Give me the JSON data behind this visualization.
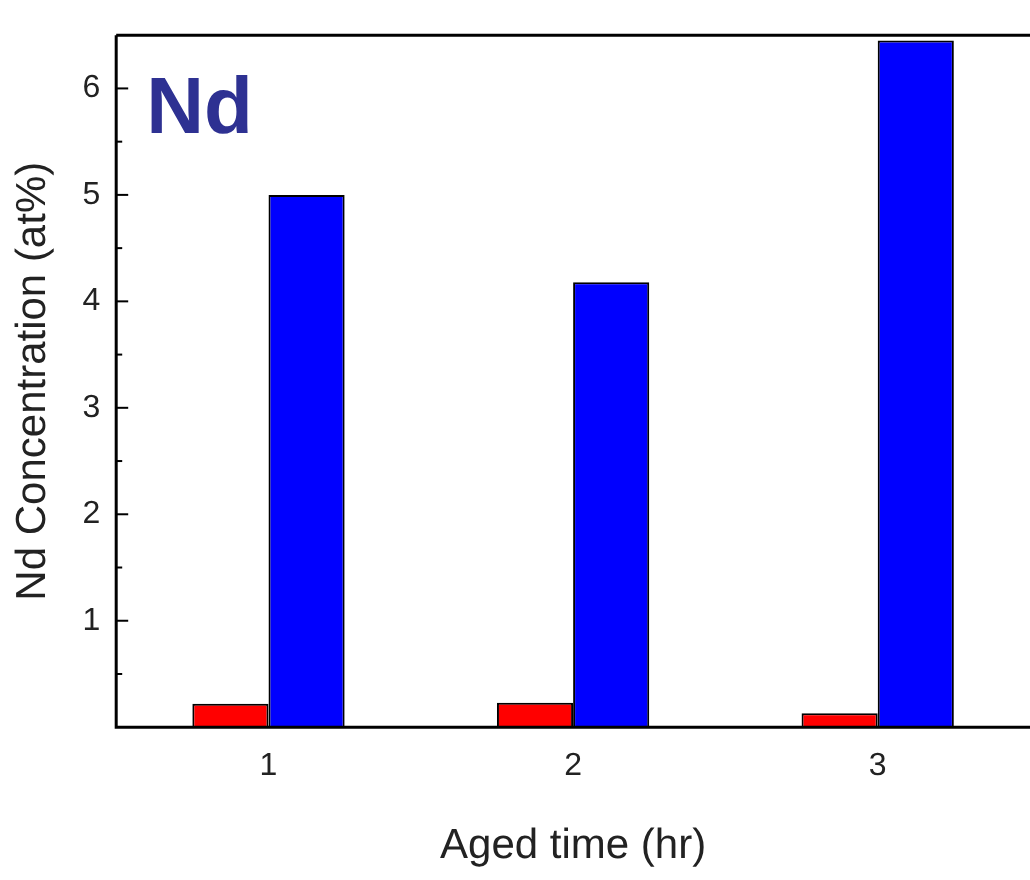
{
  "chart_data": {
    "type": "bar",
    "xlabel": "Aged time (hr)",
    "ylabel": "Nd Concentration (at%)",
    "annotations": [
      "Nd"
    ],
    "categories": [
      "1",
      "2",
      "3"
    ],
    "series": [
      {
        "color": "#ff0000",
        "values": [
          0.22,
          0.23,
          0.13
        ]
      },
      {
        "color": "#0000ff",
        "values": [
          5.0,
          4.18,
          6.45
        ]
      }
    ],
    "ylim": [
      0,
      6.5
    ],
    "yticks": [
      {
        "value": 0.5,
        "label": null
      },
      1,
      {
        "value": 1.5,
        "label": null
      },
      2,
      {
        "value": 2.5,
        "label": null
      },
      3,
      {
        "value": 3.5,
        "label": null
      },
      4,
      {
        "value": 4.5,
        "label": null
      },
      5,
      {
        "value": 5.5,
        "label": null
      },
      6
    ],
    "grid": false,
    "legend": false
  }
}
